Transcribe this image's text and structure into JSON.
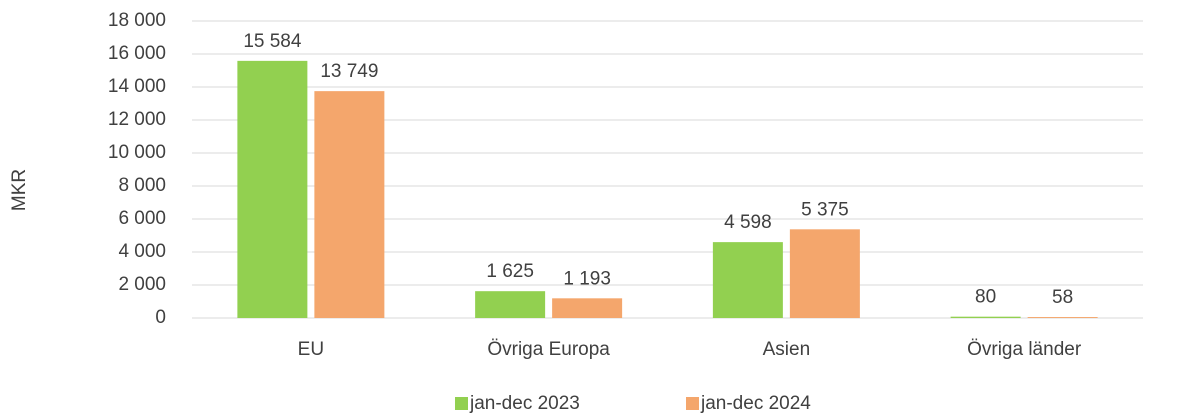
{
  "chart_data": {
    "type": "bar",
    "y_label": "MKR",
    "categories": [
      "EU",
      "Övriga Europa",
      "Asien",
      "Övriga länder"
    ],
    "series": [
      {
        "name": "jan-dec 2023",
        "color": "#92d050",
        "values": [
          15584,
          1625,
          4598,
          80
        ],
        "value_labels": [
          "15 584",
          "1 625",
          "4 598",
          "80"
        ]
      },
      {
        "name": "jan-dec 2024",
        "color": "#f4a66c",
        "values": [
          13749,
          1193,
          5375,
          58
        ],
        "value_labels": [
          "13 749",
          "1 193",
          "5 375",
          "58"
        ]
      }
    ],
    "ylim": [
      0,
      18000
    ],
    "yticks": [
      0,
      {
        "value": 2000,
        "label": "2 000"
      },
      {
        "value": 4000,
        "label": "4 000"
      },
      {
        "value": 6000,
        "label": "6 000"
      },
      {
        "value": 8000,
        "label": "8 000"
      },
      {
        "value": 10000,
        "label": "10 000"
      },
      {
        "value": 12000,
        "label": "12 000"
      },
      {
        "value": 14000,
        "label": "14 000"
      },
      {
        "value": 16000,
        "label": "16 000"
      },
      {
        "value": 18000,
        "label": "18 000"
      }
    ],
    "grid": true,
    "legend": "bottom"
  }
}
